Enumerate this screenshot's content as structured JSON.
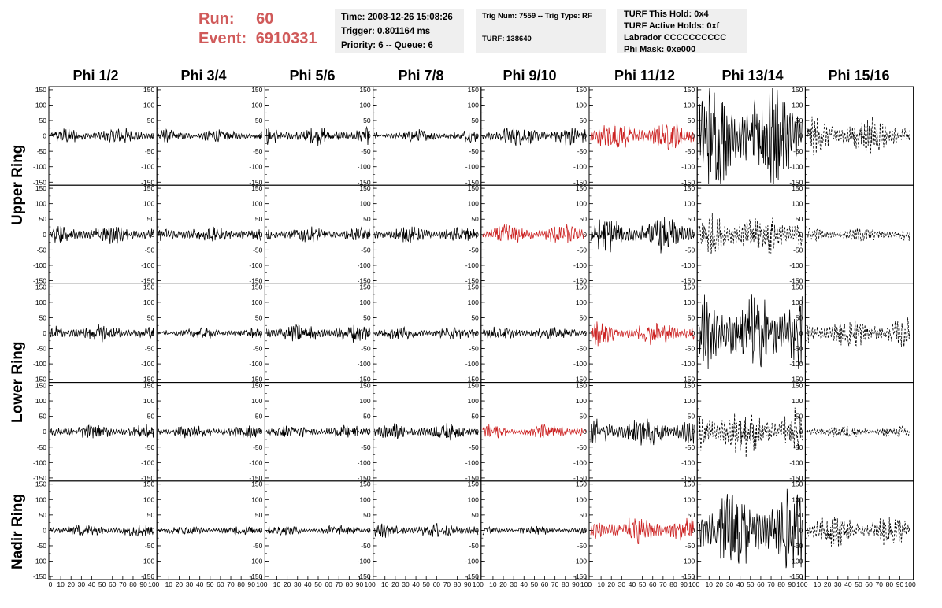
{
  "header": {
    "run_label": "Run:",
    "run_value": "60",
    "event_label": "Event:",
    "event_value": "6910331",
    "time": "Time: 2008-12-26 15:08:26",
    "trigger": "Trigger: 0.801164 ms",
    "priority": "Priority: 6 -- Queue: 6",
    "trig_num": "Trig Num: 7559 -- Trig Type: RF",
    "turf": "TURF: 138640",
    "turf_this_hold": "TURF This Hold: 0x4",
    "turf_active_holds": "TURF Active Holds: 0xf",
    "labrador": "Labrador CCCCCCCCCC",
    "phi_mask": "Phi Mask: 0xe000"
  },
  "colors": {
    "header_text": "#d05a5a",
    "normal_trace": "#000000",
    "triggered_trace": "#cc2222",
    "info_bg": "#efefef"
  },
  "chart_data": {
    "type": "line",
    "columns": [
      "Phi 1/2",
      "Phi 3/4",
      "Phi 5/6",
      "Phi 7/8",
      "Phi 9/10",
      "Phi 11/12",
      "Phi 13/14",
      "Phi 15/16"
    ],
    "rows": [
      "Upper Ring",
      "Upper Ring",
      "Lower Ring",
      "Lower Ring",
      "Nadir Ring"
    ],
    "row_labels": [
      "Upper Ring",
      "Lower Ring",
      "Nadir Ring"
    ],
    "ylim": [
      -160,
      160
    ],
    "yticks": [
      -150,
      -100,
      -50,
      0,
      50,
      100,
      150
    ],
    "xlim": [
      0,
      100
    ],
    "xticks": [
      0,
      10,
      20,
      30,
      40,
      50,
      60,
      70,
      80,
      90,
      100
    ],
    "amplitude": [
      [
        18,
        14,
        20,
        14,
        22,
        32,
        120,
        40
      ],
      [
        20,
        18,
        18,
        18,
        22,
        38,
        48,
        16
      ],
      [
        18,
        12,
        20,
        14,
        14,
        26,
        95,
        32
      ],
      [
        16,
        14,
        14,
        18,
        16,
        32,
        52,
        14
      ],
      [
        14,
        10,
        12,
        16,
        10,
        30,
        90,
        34
      ]
    ],
    "highlight": [
      [
        0,
        0,
        0,
        0,
        0,
        1,
        0,
        0
      ],
      [
        0,
        0,
        0,
        0,
        1,
        0,
        0,
        0
      ],
      [
        0,
        0,
        0,
        0,
        0,
        1,
        0,
        0
      ],
      [
        0,
        0,
        0,
        0,
        1,
        0,
        0,
        0
      ],
      [
        0,
        0,
        0,
        0,
        0,
        1,
        0,
        0
      ]
    ],
    "dashed": [
      [
        0,
        0,
        0,
        0,
        0,
        0,
        0,
        1
      ],
      [
        0,
        0,
        0,
        0,
        0,
        0,
        1,
        1
      ],
      [
        0,
        0,
        0,
        0,
        0,
        0,
        0,
        1
      ],
      [
        0,
        0,
        0,
        0,
        0,
        0,
        1,
        1
      ],
      [
        0,
        0,
        0,
        0,
        0,
        0,
        0,
        1
      ]
    ]
  }
}
